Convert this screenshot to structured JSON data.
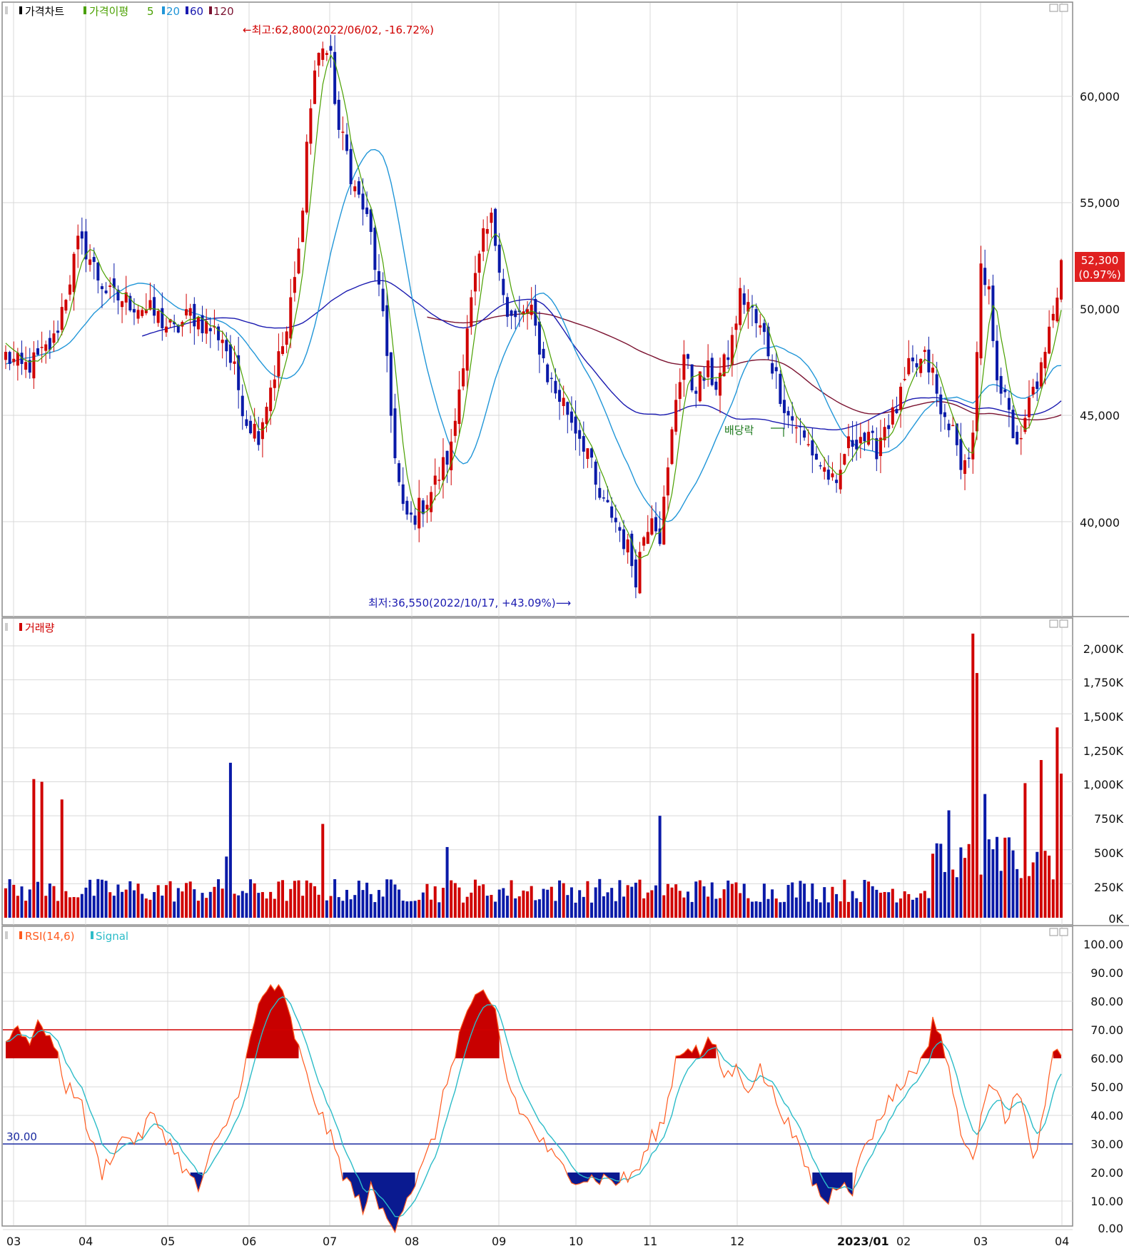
{
  "panels": {
    "price": {
      "legend": [
        "가격차트",
        "가격이평",
        "5",
        "20",
        "60",
        "120"
      ],
      "high_note": "←최고:62,800(2022/06/02, -16.72%)",
      "low_note": "최저:36,550(2022/10/17, +43.09%)⟶",
      "dividend_note": "배당락",
      "current_price": "52,300",
      "current_change": "(0.97%)",
      "y_ticks": [
        "60,000",
        "55,000",
        "50,000",
        "45,000",
        "40,000"
      ]
    },
    "volume": {
      "legend": "거래량",
      "y_ticks": [
        "2,000K",
        "1,750K",
        "1,500K",
        "1,250K",
        "1,000K",
        "750K",
        "500K",
        "250K",
        "0K"
      ]
    },
    "rsi": {
      "legend_rsi": "RSI(14,6)",
      "legend_signal": "Signal",
      "level_low_label": "30.00",
      "y_ticks": [
        "100.00",
        "90.00",
        "80.00",
        "70.00",
        "60.00",
        "50.00",
        "40.00",
        "30.00",
        "20.00",
        "10.00",
        "0.00"
      ]
    }
  },
  "x_axis": {
    "labels": [
      "03",
      "04",
      "05",
      "06",
      "07",
      "08",
      "09",
      "10",
      "11",
      "12",
      "2023/01",
      "02",
      "03",
      "04"
    ]
  },
  "colors": {
    "up": "#d00000",
    "down": "#0a1aa8",
    "ma5": "#4aa000",
    "ma20": "#2196d8",
    "ma60": "#1a1ab0",
    "ma120": "#7b1230",
    "rsi": "#ff5a1e",
    "signal": "#2cbcc8",
    "rsi_70": "#d00000",
    "rsi_30": "#1a2aa0"
  },
  "chart_data": [
    {
      "type": "candlestick",
      "title": "가격차트",
      "x_range": [
        "2022-03",
        "2023-04"
      ],
      "ylim": [
        35000,
        64000
      ],
      "series": [
        {
          "name": "가격이평 5",
          "kind": "moving_average"
        },
        {
          "name": "20",
          "kind": "moving_average"
        },
        {
          "name": "60",
          "kind": "moving_average"
        },
        {
          "name": "120",
          "kind": "moving_average"
        }
      ],
      "close_path": [
        [
          0,
          47800
        ],
        [
          4,
          47200
        ],
        [
          8,
          47600
        ],
        [
          12,
          48500
        ],
        [
          16,
          51500
        ],
        [
          18,
          53000
        ],
        [
          20,
          52800
        ],
        [
          23,
          51500
        ],
        [
          26,
          50600
        ],
        [
          30,
          50400
        ],
        [
          34,
          50100
        ],
        [
          38,
          49600
        ],
        [
          42,
          48900
        ],
        [
          46,
          49800
        ],
        [
          50,
          49200
        ],
        [
          54,
          48700
        ],
        [
          57,
          47000
        ],
        [
          60,
          44800
        ],
        [
          63,
          44200
        ],
        [
          66,
          46400
        ],
        [
          70,
          48900
        ],
        [
          73,
          52600
        ],
        [
          75,
          57800
        ],
        [
          77,
          61200
        ],
        [
          79,
          62500
        ],
        [
          81,
          61600
        ],
        [
          83,
          58400
        ],
        [
          85,
          57300
        ],
        [
          87,
          55600
        ],
        [
          89,
          54800
        ],
        [
          91,
          53400
        ],
        [
          93,
          50800
        ],
        [
          95,
          47800
        ],
        [
          97,
          42900
        ],
        [
          99,
          40400
        ],
        [
          101,
          40100
        ],
        [
          103,
          40600
        ],
        [
          105,
          41100
        ],
        [
          107,
          41800
        ],
        [
          109,
          42600
        ],
        [
          111,
          43400
        ],
        [
          113,
          46300
        ],
        [
          115,
          49300
        ],
        [
          117,
          51300
        ],
        [
          119,
          53200
        ],
        [
          121,
          54100
        ],
        [
          123,
          52300
        ],
        [
          125,
          49600
        ],
        [
          127,
          49400
        ],
        [
          129,
          49900
        ],
        [
          131,
          49700
        ],
        [
          133,
          48300
        ],
        [
          135,
          46900
        ],
        [
          137,
          46100
        ],
        [
          139,
          45600
        ],
        [
          141,
          44800
        ],
        [
          143,
          44100
        ],
        [
          145,
          43400
        ],
        [
          147,
          41500
        ],
        [
          149,
          40700
        ],
        [
          151,
          40400
        ],
        [
          153,
          39600
        ],
        [
          155,
          38700
        ],
        [
          157,
          37500
        ],
        [
          159,
          39400
        ],
        [
          161,
          40600
        ],
        [
          163,
          39400
        ],
        [
          165,
          42300
        ],
        [
          167,
          45900
        ],
        [
          169,
          47900
        ],
        [
          171,
          46400
        ],
        [
          173,
          46600
        ],
        [
          175,
          47000
        ],
        [
          177,
          46500
        ],
        [
          179,
          47300
        ],
        [
          181,
          48500
        ],
        [
          183,
          50600
        ],
        [
          185,
          50300
        ],
        [
          187,
          49300
        ],
        [
          189,
          48700
        ],
        [
          191,
          47400
        ],
        [
          193,
          46100
        ],
        [
          195,
          45000
        ],
        [
          197,
          44600
        ],
        [
          199,
          43800
        ],
        [
          201,
          43300
        ],
        [
          203,
          42700
        ],
        [
          205,
          42200
        ],
        [
          207,
          41300
        ],
        [
          209,
          43300
        ],
        [
          211,
          43800
        ],
        [
          213,
          44100
        ],
        [
          215,
          43700
        ],
        [
          217,
          43500
        ],
        [
          219,
          44600
        ],
        [
          221,
          44900
        ],
        [
          223,
          45800
        ],
        [
          225,
          47100
        ],
        [
          227,
          47300
        ],
        [
          229,
          47600
        ],
        [
          231,
          46900
        ],
        [
          233,
          44900
        ],
        [
          235,
          44800
        ],
        [
          237,
          43300
        ],
        [
          239,
          42700
        ],
        [
          241,
          43800
        ],
        [
          243,
          51600
        ],
        [
          245,
          50600
        ],
        [
          247,
          47100
        ],
        [
          249,
          45600
        ],
        [
          251,
          44200
        ],
        [
          253,
          43500
        ],
        [
          255,
          45600
        ],
        [
          257,
          46600
        ],
        [
          259,
          47600
        ],
        [
          261,
          50100
        ],
        [
          263,
          51800
        ]
      ],
      "annotations": [
        {
          "text": "최고:62,800(2022/06/02, -16.72%)",
          "value": 62800
        },
        {
          "text": "최저:36,550(2022/10/17, +43.09%)",
          "value": 36550
        },
        {
          "text": "배당락"
        }
      ],
      "last_value": 52300,
      "last_change_pct": 0.97
    },
    {
      "type": "bar",
      "title": "거래량",
      "ylim": [
        0,
        2150
      ],
      "unit": "K",
      "spikes_k": [
        {
          "x_day": 7,
          "value": 1020
        },
        {
          "x_day": 9,
          "value": 1000
        },
        {
          "x_day": 14,
          "value": 870
        },
        {
          "x_day": 55,
          "value": 450
        },
        {
          "x_day": 56,
          "value": 1140
        },
        {
          "x_day": 79,
          "value": 690
        },
        {
          "x_day": 110,
          "value": 520
        },
        {
          "x_day": 163,
          "value": 750
        },
        {
          "x_day": 235,
          "value": 790
        },
        {
          "x_day": 241,
          "value": 2090
        },
        {
          "x_day": 242,
          "value": 1800
        },
        {
          "x_day": 244,
          "value": 910
        },
        {
          "x_day": 254,
          "value": 990
        },
        {
          "x_day": 258,
          "value": 1160
        },
        {
          "x_day": 262,
          "value": 1400
        },
        {
          "x_day": 263,
          "value": 1060
        }
      ]
    },
    {
      "type": "line",
      "title": "RSI(14,6)",
      "ylim": [
        0,
        100
      ],
      "levels": [
        70,
        30
      ],
      "series": [
        {
          "name": "RSI(14,6)",
          "points": [
            [
              0,
              75
            ],
            [
              3,
              82
            ],
            [
              6,
              76
            ],
            [
              9,
              83
            ],
            [
              12,
              74
            ],
            [
              15,
              60
            ],
            [
              18,
              58
            ],
            [
              21,
              42
            ],
            [
              24,
              30
            ],
            [
              27,
              38
            ],
            [
              30,
              43
            ],
            [
              33,
              41
            ],
            [
              36,
              50
            ],
            [
              39,
              45
            ],
            [
              42,
              38
            ],
            [
              45,
              30
            ],
            [
              48,
              24
            ],
            [
              51,
              36
            ],
            [
              54,
              44
            ],
            [
              57,
              54
            ],
            [
              60,
              70
            ],
            [
              63,
              88
            ],
            [
              66,
              96
            ],
            [
              69,
              92
            ],
            [
              72,
              78
            ],
            [
              75,
              63
            ],
            [
              78,
              52
            ],
            [
              81,
              42
            ],
            [
              84,
              30
            ],
            [
              87,
              22
            ],
            [
              89,
              18
            ],
            [
              91,
              24
            ],
            [
              93,
              18
            ],
            [
              95,
              14
            ],
            [
              97,
              12
            ],
            [
              99,
              19
            ],
            [
              101,
              24
            ],
            [
              104,
              32
            ],
            [
              107,
              44
            ],
            [
              110,
              62
            ],
            [
              113,
              78
            ],
            [
              116,
              90
            ],
            [
              119,
              91
            ],
            [
              122,
              86
            ],
            [
              125,
              62
            ],
            [
              128,
              52
            ],
            [
              131,
              46
            ],
            [
              134,
              40
            ],
            [
              137,
              34
            ],
            [
              140,
              30
            ],
            [
              143,
              28
            ],
            [
              146,
              28
            ],
            [
              149,
              28
            ],
            [
              152,
              27
            ],
            [
              155,
              28
            ],
            [
              158,
              32
            ],
            [
              161,
              42
            ],
            [
              164,
              48
            ],
            [
              167,
              70
            ],
            [
              170,
              75
            ],
            [
              173,
              72
            ],
            [
              176,
              76
            ],
            [
              179,
              64
            ],
            [
              182,
              66
            ],
            [
              185,
              60
            ],
            [
              188,
              66
            ],
            [
              191,
              58
            ],
            [
              194,
              50
            ],
            [
              197,
              40
            ],
            [
              200,
              30
            ],
            [
              203,
              22
            ],
            [
              205,
              20
            ],
            [
              207,
              26
            ],
            [
              209,
              28
            ],
            [
              211,
              24
            ],
            [
              214,
              40
            ],
            [
              217,
              46
            ],
            [
              220,
              56
            ],
            [
              223,
              60
            ],
            [
              226,
              66
            ],
            [
              229,
              70
            ],
            [
              231,
              84
            ],
            [
              233,
              78
            ],
            [
              236,
              58
            ],
            [
              239,
              40
            ],
            [
              241,
              32
            ],
            [
              243,
              52
            ],
            [
              245,
              63
            ],
            [
              247,
              60
            ],
            [
              249,
              46
            ],
            [
              251,
              58
            ],
            [
              253,
              55
            ],
            [
              255,
              40
            ],
            [
              257,
              36
            ],
            [
              259,
              54
            ],
            [
              261,
              71
            ],
            [
              263,
              70
            ]
          ]
        },
        {
          "name": "Signal",
          "kind": "smoothed RSI"
        }
      ]
    }
  ]
}
